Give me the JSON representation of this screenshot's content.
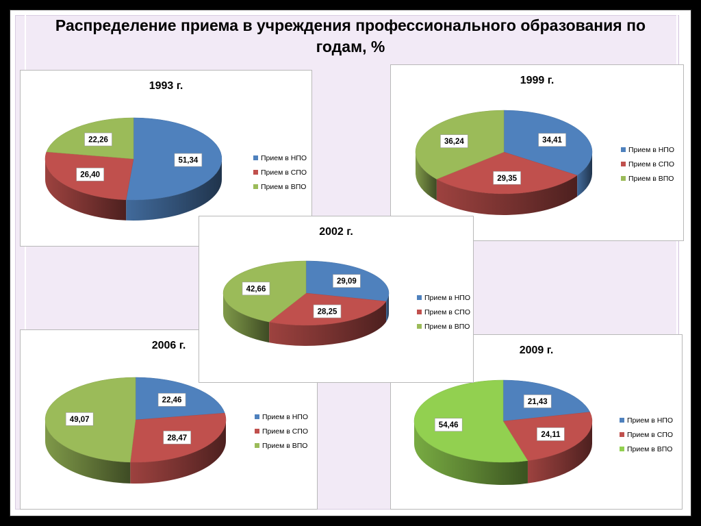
{
  "title": "Распределение приема в учреждения профессионального образования по годам, %",
  "colors": {
    "npo": "#4f81bd",
    "spo": "#c0504d",
    "vpo": "#9bbb59",
    "vpo_2009": "#92d050"
  },
  "chart_data": [
    {
      "type": "pie",
      "title": "1993 г.",
      "legend_position": "right",
      "categories": [
        "Прием в НПО",
        "Прием в СПО",
        "Прием в ВПО"
      ],
      "values": [
        51.34,
        26.4,
        22.26
      ],
      "labels": [
        "51,34",
        "26,40",
        "22,26"
      ]
    },
    {
      "type": "pie",
      "title": "1999 г.",
      "legend_position": "right",
      "categories": [
        "Прием в НПО",
        "Прием в СПО",
        "Прием в ВПО"
      ],
      "values": [
        34.41,
        29.35,
        36.24
      ],
      "labels": [
        "34,41",
        "29,35",
        "36,24"
      ]
    },
    {
      "type": "pie",
      "title": "2002 г.",
      "legend_position": "right",
      "categories": [
        "Прием в НПО",
        "Прием в СПО",
        "Прием в ВПО"
      ],
      "values": [
        29.09,
        28.25,
        42.66
      ],
      "labels": [
        "29,09",
        "28,25",
        "42,66"
      ]
    },
    {
      "type": "pie",
      "title": "2006 г.",
      "legend_position": "right",
      "categories": [
        "Прием в НПО",
        "Прием в СПО",
        "Прием в ВПО"
      ],
      "values": [
        22.46,
        28.47,
        49.07
      ],
      "labels": [
        "22,46",
        "28,47",
        "49,07"
      ]
    },
    {
      "type": "pie",
      "title": "2009 г.",
      "legend_position": "right",
      "categories": [
        "Прием в НПО",
        "Прием в СПО",
        "Прием в ВПО"
      ],
      "values": [
        21.43,
        24.11,
        54.46
      ],
      "labels": [
        "21,43",
        "24,11",
        "54,46"
      ]
    }
  ]
}
